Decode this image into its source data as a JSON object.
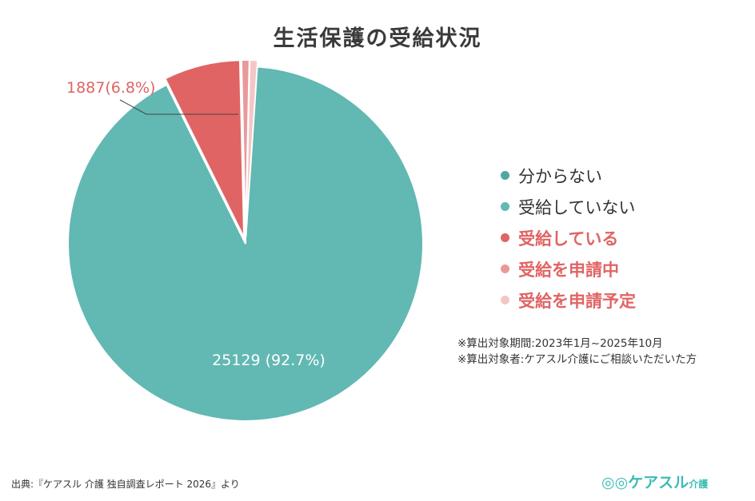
{
  "chart_data": {
    "type": "pie",
    "title": "生活保護の受給状況",
    "start": "top",
    "direction": "clockwise",
    "slices": [
      {
        "name": "受給していない",
        "value": 25129,
        "percent": 92.7,
        "label": "25129 (92.7%)",
        "color": "#62b8b3"
      },
      {
        "name": "受給している",
        "value": 1887,
        "percent": 6.8,
        "label": "1887(6.8%)",
        "color": "#e06464"
      },
      {
        "name": "受給を申請中",
        "value": 70,
        "color": "#e89a9a"
      },
      {
        "name": "受給を申請予定",
        "value": 30,
        "color": "#f4c6c6"
      },
      {
        "name": "分からない",
        "value": 0,
        "color": "#4fa8a3"
      }
    ],
    "legend": {
      "placement": "right",
      "items": [
        {
          "label": "分からない",
          "color": "#4fa8a3",
          "text_color": "#333333"
        },
        {
          "label": "受給していない",
          "color": "#62b8b3",
          "text_color": "#333333"
        },
        {
          "label": "受給している",
          "color": "#e06464",
          "text_color": "#e06464"
        },
        {
          "label": "受給を申請中",
          "color": "#e89a9a",
          "text_color": "#e06464"
        },
        {
          "label": "受給を申請予定",
          "color": "#f4c6c6",
          "text_color": "#e06464"
        }
      ]
    }
  },
  "notes": [
    "※算出対象期間:2023年1月~2025年10月",
    "※算出対象者:ケアスル介護にご相談いただいた方"
  ],
  "source": "出典:『ケアスル 介護 独自調査レポート 2026』より",
  "logo": {
    "text": "ケアスル",
    "sub": "介護"
  }
}
